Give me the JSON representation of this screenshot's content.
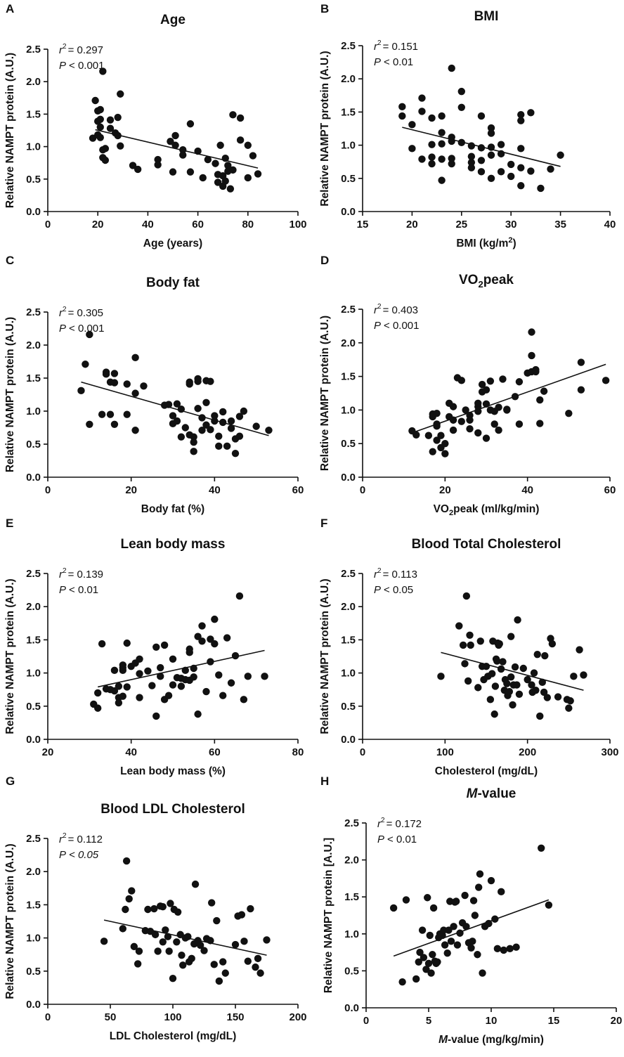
{
  "figure": {
    "y_axis_label": "Relative NAMPT protein (A.U.)",
    "y_axis_label_alt": "Relative NAMPT protein [A.U.]"
  },
  "chart_data": [
    {
      "panel": "A",
      "type": "scatter",
      "title": "Age",
      "xlabel": "Age (years)",
      "ylabel": "Relative NAMPT protein (A.U.)",
      "r2_label": "r",
      "r2_value": "= 0.297",
      "p_label": "P",
      "p_value": "< 0.001",
      "p_value_italic": false,
      "xlim": [
        0,
        100
      ],
      "ylim": [
        0,
        2.5
      ],
      "xticks": [
        "0",
        "20",
        "40",
        "60",
        "80",
        "100"
      ],
      "yticks": [
        "0.0",
        "0.5",
        "1.0",
        "1.5",
        "2.0",
        "2.5"
      ],
      "fit": {
        "x": [
          19,
          84
        ],
        "y": [
          1.26,
          0.67
        ]
      },
      "x": [
        18,
        19,
        20,
        20,
        20,
        21,
        21,
        21,
        21,
        22,
        22,
        22,
        23,
        23,
        25,
        25,
        27,
        28,
        28,
        29,
        29,
        34,
        36,
        44,
        44,
        49,
        50,
        51,
        51,
        54,
        54,
        57,
        57,
        60,
        62,
        64,
        67,
        68,
        68,
        69,
        70,
        70,
        71,
        71,
        72,
        72,
        73,
        74,
        74,
        77,
        77,
        80,
        80,
        82,
        84
      ],
      "y": [
        1.13,
        1.71,
        1.55,
        1.39,
        1.18,
        1.57,
        1.42,
        1.3,
        1.14,
        2.16,
        0.95,
        0.83,
        0.79,
        0.97,
        1.41,
        1.28,
        1.21,
        1.45,
        1.17,
        1.81,
        1.01,
        0.71,
        0.65,
        0.8,
        0.72,
        1.08,
        0.61,
        1.17,
        1.02,
        0.95,
        0.87,
        1.35,
        0.61,
        0.93,
        0.52,
        0.8,
        0.74,
        0.57,
        0.45,
        1.02,
        0.39,
        0.55,
        0.82,
        0.47,
        0.71,
        0.62,
        0.35,
        1.49,
        0.64,
        1.44,
        1.1,
        1.02,
        0.52,
        0.86,
        0.58
      ]
    },
    {
      "panel": "B",
      "type": "scatter",
      "title": "BMI",
      "xlabel": "BMI (kg/m",
      "xlabel_sup": "2",
      "xlabel_end": ")",
      "ylabel": "Relative NAMPT protein (A.U.)",
      "r2_label": "r",
      "r2_value": "= 0.151",
      "p_label": "P",
      "p_value": "< 0.01",
      "p_value_italic": false,
      "xlim": [
        15,
        40
      ],
      "ylim": [
        0,
        2.5
      ],
      "xticks": [
        "15",
        "20",
        "25",
        "30",
        "35",
        "40"
      ],
      "yticks": [
        "0.0",
        "0.5",
        "1.0",
        "1.5",
        "2.0",
        "2.5"
      ],
      "fit": {
        "x": [
          19,
          35
        ],
        "y": [
          1.27,
          0.68
        ]
      },
      "x": [
        19,
        19,
        20,
        20,
        21,
        21,
        21,
        22,
        22,
        22,
        22,
        23,
        23,
        23,
        23,
        23,
        24,
        24,
        24,
        24,
        24,
        25,
        25,
        25,
        26,
        26,
        26,
        26,
        27,
        27,
        27,
        27,
        28,
        28,
        28,
        28,
        28,
        29,
        29,
        29,
        30,
        30,
        31,
        31,
        31,
        31,
        31,
        32,
        32,
        33,
        34,
        35
      ],
      "y": [
        1.58,
        1.44,
        1.31,
        0.95,
        1.71,
        1.51,
        0.79,
        1.41,
        1.01,
        0.82,
        0.72,
        1.44,
        1.19,
        1.02,
        0.79,
        0.47,
        2.16,
        1.12,
        1.06,
        0.8,
        0.72,
        1.81,
        1.57,
        1.04,
        0.99,
        0.83,
        0.74,
        0.66,
        1.44,
        0.96,
        0.77,
        0.6,
        1.26,
        1.18,
        0.97,
        0.85,
        0.5,
        1.01,
        0.87,
        0.6,
        0.71,
        0.53,
        1.46,
        1.37,
        0.95,
        0.66,
        0.39,
        1.49,
        0.61,
        0.35,
        0.64,
        0.85
      ]
    },
    {
      "panel": "C",
      "type": "scatter",
      "title": "Body fat",
      "xlabel": "Body fat (%)",
      "ylabel": "Relative NAMPT protein (A.U.)",
      "r2_label": "r",
      "r2_value": "= 0.305",
      "p_label": "P",
      "p_value": "< 0.001",
      "p_value_italic": false,
      "xlim": [
        0,
        60
      ],
      "ylim": [
        0,
        2.5
      ],
      "xticks": [
        "0",
        "20",
        "40",
        "60"
      ],
      "yticks": [
        "0.0",
        "0.5",
        "1.0",
        "1.5",
        "2.0",
        "2.5"
      ],
      "fit": {
        "x": [
          8,
          53
        ],
        "y": [
          1.44,
          0.63
        ]
      },
      "x": [
        8,
        9,
        10,
        10,
        13,
        14,
        14,
        15,
        15,
        16,
        16,
        16,
        19,
        19,
        21,
        21,
        21,
        23,
        28,
        29,
        30,
        30,
        31,
        31,
        32,
        32,
        33,
        34,
        34,
        34,
        35,
        35,
        35,
        36,
        36,
        36,
        37,
        37,
        38,
        38,
        38,
        39,
        39,
        40,
        40,
        41,
        41,
        42,
        42,
        43,
        44,
        44,
        45,
        45,
        46,
        46,
        47,
        50,
        53
      ],
      "y": [
        1.31,
        1.71,
        2.16,
        0.8,
        0.95,
        1.59,
        1.56,
        0.95,
        1.44,
        1.57,
        1.43,
        0.8,
        1.41,
        0.95,
        1.81,
        1.27,
        0.71,
        1.38,
        1.09,
        1.1,
        0.93,
        0.81,
        1.11,
        0.85,
        0.61,
        1.03,
        0.75,
        0.64,
        1.41,
        1.44,
        0.61,
        0.39,
        0.53,
        1.49,
        1.45,
        1.04,
        0.9,
        0.71,
        1.46,
        1.13,
        0.79,
        1.45,
        0.72,
        0.85,
        0.93,
        0.62,
        0.47,
        0.99,
        0.83,
        0.47,
        0.74,
        0.85,
        0.58,
        0.36,
        0.92,
        0.62,
        1.0,
        0.77,
        0.71
      ]
    },
    {
      "panel": "D",
      "type": "scatter",
      "title": "VO",
      "title_sub": "2",
      "title_end": "peak",
      "xlabel": "VO",
      "xlabel_sub": "2",
      "xlabel_end": "peak (ml/kg/min)",
      "ylabel": "Relative NAMPT protein (A.U.)",
      "r2_label": "r",
      "r2_value": "= 0.403",
      "p_label": "P",
      "p_value": "< 0.001",
      "p_value_italic": false,
      "xlim": [
        0,
        60
      ],
      "ylim": [
        0,
        2.5
      ],
      "xticks": [
        "0",
        "20",
        "40",
        "60"
      ],
      "yticks": [
        "0.0",
        "0.5",
        "1.0",
        "1.5",
        "2.0",
        "2.5"
      ],
      "fit": {
        "x": [
          12,
          59
        ],
        "y": [
          0.66,
          1.68
        ]
      },
      "x": [
        12,
        13,
        16,
        17,
        17,
        17,
        18,
        18,
        18,
        18,
        19,
        19,
        20,
        20,
        21,
        21,
        22,
        22,
        22,
        23,
        24,
        24,
        25,
        26,
        26,
        26,
        28,
        28,
        28,
        28,
        29,
        29,
        30,
        30,
        30,
        31,
        31,
        32,
        32,
        33,
        33,
        34,
        35,
        35,
        37,
        38,
        38,
        40,
        41,
        41,
        41,
        42,
        42,
        43,
        43,
        44,
        50,
        53,
        53,
        59
      ],
      "y": [
        0.69,
        0.63,
        0.62,
        0.94,
        0.9,
        0.38,
        0.79,
        0.76,
        0.55,
        0.95,
        0.62,
        0.44,
        0.35,
        0.5,
        0.9,
        1.1,
        1.05,
        0.85,
        0.7,
        1.48,
        1.44,
        0.83,
        1.0,
        0.92,
        0.72,
        0.85,
        1.05,
        1.1,
        0.98,
        0.66,
        1.38,
        1.27,
        1.3,
        1.09,
        0.58,
        1.43,
        1.0,
        0.98,
        0.79,
        1.04,
        0.7,
        1.46,
        1.0,
        1.01,
        1.2,
        1.42,
        0.79,
        1.55,
        2.16,
        1.81,
        1.57,
        1.6,
        1.57,
        1.15,
        0.8,
        1.28,
        0.95,
        1.71,
        1.3,
        1.44
      ]
    },
    {
      "panel": "E",
      "type": "scatter",
      "title": "Lean body mass",
      "xlabel": "Lean body mass (%)",
      "ylabel": "Relative NAMPT protein (A.U.)",
      "r2_label": "r",
      "r2_value": "= 0.139",
      "p_label": "P",
      "p_value": "< 0.01",
      "p_value_italic": false,
      "xlim": [
        20,
        80
      ],
      "ylim": [
        0,
        2.5
      ],
      "xticks": [
        "20",
        "40",
        "60",
        "80"
      ],
      "yticks": [
        "0.0",
        "0.5",
        "1.0",
        "1.5",
        "2.0",
        "2.5"
      ],
      "fit": {
        "x": [
          32,
          72
        ],
        "y": [
          0.79,
          1.34
        ]
      },
      "x": [
        31,
        32,
        32,
        33,
        34,
        35,
        36,
        36,
        37,
        37,
        37,
        38,
        38,
        38,
        38,
        39,
        39,
        40,
        41,
        42,
        42,
        42,
        44,
        45,
        46,
        46,
        47,
        47,
        48,
        48,
        49,
        50,
        50,
        51,
        52,
        52,
        53,
        53,
        54,
        54,
        54,
        55,
        55,
        56,
        56,
        57,
        57,
        58,
        59,
        59,
        60,
        60,
        61,
        62,
        63,
        64,
        65,
        66,
        67,
        68,
        72
      ],
      "y": [
        0.53,
        0.7,
        0.47,
        1.44,
        0.76,
        0.75,
        0.73,
        1.04,
        0.63,
        0.55,
        0.8,
        1.08,
        1.12,
        1.04,
        0.65,
        1.45,
        0.79,
        1.1,
        1.15,
        0.63,
        1.21,
        0.99,
        1.03,
        0.81,
        1.39,
        0.35,
        1.08,
        0.95,
        0.6,
        1.42,
        0.66,
        0.82,
        1.21,
        0.93,
        0.92,
        0.8,
        0.9,
        1.04,
        1.31,
        1.36,
        0.89,
        0.94,
        1.07,
        1.55,
        0.38,
        1.71,
        1.48,
        0.72,
        1.51,
        1.17,
        1.81,
        1.44,
        0.97,
        0.66,
        1.53,
        0.85,
        1.26,
        2.16,
        0.6,
        0.95,
        0.95
      ]
    },
    {
      "panel": "F",
      "type": "scatter",
      "title": "Blood Total Cholesterol",
      "xlabel": "Cholesterol (mg/dL)",
      "ylabel": "Relative NAMPT protein (A.U.)",
      "r2_label": "r",
      "r2_value": "= 0.113",
      "p_label": "P",
      "p_value": "< 0.05",
      "p_value_italic": false,
      "xlim": [
        0,
        300
      ],
      "ylim": [
        0,
        2.5
      ],
      "xticks": [
        "0",
        "100",
        "200",
        "300"
      ],
      "yticks": [
        "0.0",
        "0.5",
        "1.0",
        "1.5",
        "2.0",
        "2.5"
      ],
      "fit": {
        "x": [
          95,
          268
        ],
        "y": [
          1.31,
          0.74
        ]
      },
      "x": [
        95,
        117,
        122,
        124,
        126,
        128,
        130,
        131,
        140,
        143,
        145,
        147,
        150,
        152,
        155,
        157,
        158,
        160,
        161,
        162,
        163,
        164,
        165,
        166,
        168,
        170,
        172,
        173,
        175,
        176,
        178,
        180,
        180,
        182,
        183,
        185,
        187,
        188,
        190,
        195,
        200,
        205,
        206,
        208,
        210,
        212,
        215,
        218,
        220,
        221,
        224,
        228,
        230,
        237,
        248,
        250,
        252,
        256,
        263,
        268
      ],
      "y": [
        0.95,
        1.71,
        1.42,
        1.14,
        2.16,
        0.88,
        1.57,
        1.42,
        0.78,
        1.48,
        1.1,
        0.9,
        1.1,
        0.95,
        0.6,
        0.99,
        1.48,
        0.38,
        0.8,
        1.21,
        1.18,
        1.45,
        1.42,
        1.44,
        1.06,
        1.17,
        0.74,
        0.9,
        0.84,
        0.66,
        0.72,
        0.94,
        1.55,
        0.52,
        0.82,
        1.09,
        0.82,
        1.8,
        0.68,
        1.07,
        0.9,
        0.82,
        0.71,
        1.0,
        0.74,
        1.28,
        0.35,
        0.86,
        0.71,
        1.26,
        0.63,
        1.52,
        1.44,
        0.64,
        0.6,
        0.47,
        0.58,
        0.95,
        1.35,
        0.97
      ]
    },
    {
      "panel": "G",
      "type": "scatter",
      "title": "Blood LDL Cholesterol",
      "xlabel": "LDL Cholesterol (mg/dL)",
      "ylabel": "Relative NAMPT protein (A.U.)",
      "r2_label": "r",
      "r2_value": "= 0.112",
      "p_label": "P",
      "p_value": "< 0.05",
      "p_value_italic": true,
      "xlim": [
        0,
        200
      ],
      "ylim": [
        0,
        2.5
      ],
      "xticks": [
        "0",
        "50",
        "100",
        "150",
        "200"
      ],
      "yticks": [
        "0.0",
        "0.5",
        "1.0",
        "1.5",
        "2.0",
        "2.5"
      ],
      "fit": {
        "x": [
          45,
          175
        ],
        "y": [
          1.27,
          0.74
        ]
      },
      "x": [
        45,
        60,
        62,
        63,
        65,
        67,
        69,
        72,
        73,
        78,
        80,
        82,
        85,
        86,
        88,
        90,
        92,
        92,
        94,
        96,
        97,
        98,
        100,
        101,
        103,
        104,
        106,
        107,
        108,
        110,
        112,
        113,
        115,
        117,
        118,
        120,
        122,
        125,
        127,
        130,
        131,
        133,
        135,
        137,
        140,
        142,
        150,
        152,
        155,
        157,
        160,
        162,
        166,
        168,
        170,
        175
      ],
      "y": [
        0.95,
        1.14,
        1.43,
        2.16,
        1.59,
        1.71,
        0.87,
        0.61,
        0.8,
        1.11,
        1.43,
        1.1,
        1.44,
        1.05,
        0.8,
        1.48,
        1.47,
        0.94,
        1.12,
        1.02,
        0.8,
        1.52,
        0.39,
        1.43,
        0.94,
        1.39,
        1.05,
        0.74,
        0.59,
        1.0,
        1.02,
        0.64,
        0.69,
        0.91,
        1.81,
        0.96,
        0.89,
        0.81,
        0.99,
        0.96,
        1.53,
        0.6,
        1.26,
        0.35,
        0.64,
        0.47,
        0.9,
        1.33,
        1.35,
        0.95,
        0.65,
        1.44,
        0.56,
        0.69,
        0.47,
        0.97
      ]
    },
    {
      "panel": "H",
      "type": "scatter",
      "title": "M",
      "title_end": "-value",
      "xlabel": "M",
      "xlabel_end": "-value (mg/kg/min)",
      "ylabel": "Relative NAMPT protein [A.U.]",
      "r2_label": "r",
      "r2_value": "= 0.172",
      "p_label": "P",
      "p_value": "< 0.01",
      "p_value_italic": false,
      "xlim": [
        0,
        20
      ],
      "ylim": [
        0,
        2.5
      ],
      "xticks": [
        "0",
        "5",
        "10",
        "15",
        "20"
      ],
      "yticks": [
        "0.0",
        "0.5",
        "1.0",
        "1.5",
        "2.0",
        "2.5"
      ],
      "fit": {
        "x": [
          2.2,
          14.6
        ],
        "y": [
          0.7,
          1.46
        ]
      },
      "x": [
        2.2,
        2.9,
        3.2,
        4.0,
        4.2,
        4.3,
        4.5,
        4.6,
        4.8,
        4.9,
        5.0,
        5.1,
        5.2,
        5.3,
        5.4,
        5.5,
        5.6,
        5.7,
        5.8,
        5.9,
        6.1,
        6.2,
        6.3,
        6.5,
        6.6,
        6.7,
        6.8,
        7.0,
        7.1,
        7.2,
        7.3,
        7.5,
        7.7,
        7.9,
        8.0,
        8.2,
        8.4,
        8.5,
        8.6,
        8.7,
        8.9,
        9.0,
        9.1,
        9.3,
        9.5,
        9.8,
        10.0,
        10.3,
        10.5,
        10.8,
        11.0,
        11.5,
        12.0,
        14.0,
        14.6
      ],
      "y": [
        1.35,
        0.35,
        1.46,
        0.39,
        0.62,
        0.75,
        1.05,
        0.68,
        0.52,
        1.49,
        0.6,
        0.98,
        0.47,
        0.72,
        1.35,
        0.63,
        0.6,
        0.62,
        0.95,
        1.0,
        0.98,
        1.05,
        0.85,
        0.74,
        1.05,
        1.44,
        0.9,
        1.1,
        1.43,
        1.44,
        0.85,
        1.01,
        1.15,
        1.52,
        1.1,
        0.88,
        0.81,
        0.9,
        1.45,
        1.25,
        0.72,
        1.63,
        1.81,
        0.47,
        1.1,
        1.14,
        1.72,
        1.2,
        0.8,
        1.57,
        0.78,
        0.8,
        0.82,
        2.16,
        1.39
      ]
    }
  ]
}
